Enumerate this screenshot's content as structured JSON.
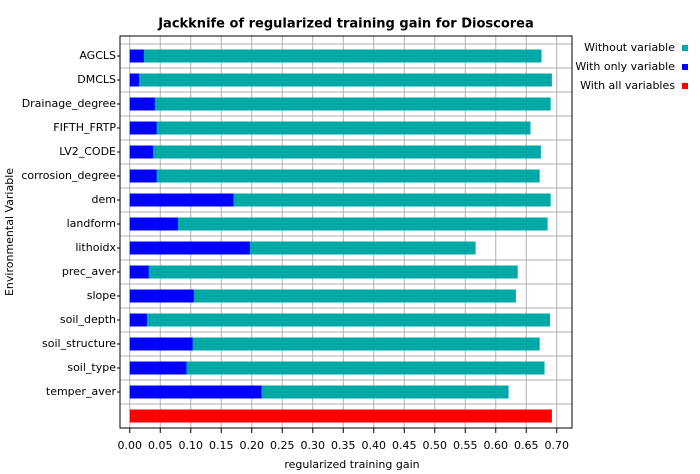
{
  "chart_data": {
    "type": "bar",
    "orientation": "horizontal",
    "overlay": true,
    "title": "Jackknife of regularized training gain for Dioscorea",
    "x_label": "regularized training gain",
    "y_label": "Environmental Variable",
    "categories": [
      "AGCLS",
      "DMCLS",
      "Drainage_degree",
      "FIFTH_FRTP",
      "LV2_CODE",
      "corrosion_degree",
      "dem",
      "landform",
      "lithoidx",
      "prec_aver",
      "slope",
      "soil_depth",
      "soil_structure",
      "soil_type",
      "temper_aver",
      null
    ],
    "series": [
      {
        "name": "Without variable",
        "color": "#00a8a8",
        "values": [
          0.675,
          0.692,
          0.69,
          0.657,
          0.674,
          0.672,
          0.69,
          0.685,
          0.567,
          0.636,
          0.633,
          0.689,
          0.672,
          0.68,
          0.621,
          null
        ]
      },
      {
        "name": "With only variable",
        "color": "#0000ff",
        "values": [
          0.023,
          0.015,
          0.041,
          0.044,
          0.038,
          0.044,
          0.17,
          0.079,
          0.197,
          0.031,
          0.105,
          0.028,
          0.103,
          0.093,
          0.216,
          null
        ]
      },
      {
        "name": "With all variables",
        "color": "#ff0000",
        "values": [
          null,
          null,
          null,
          null,
          null,
          null,
          null,
          null,
          null,
          null,
          null,
          null,
          null,
          null,
          null,
          0.692
        ]
      }
    ],
    "xlim": [
      -0.016,
      0.725
    ],
    "xticks": [
      {
        "value": 0,
        "label": "0.00"
      },
      0.05,
      {
        "value": 0.1,
        "label": "0.10"
      },
      0.15,
      {
        "value": 0.2,
        "label": "0.20"
      },
      0.25,
      {
        "value": 0.3,
        "label": "0.30"
      },
      0.35,
      {
        "value": 0.4,
        "label": "0.40"
      },
      0.45,
      {
        "value": 0.5,
        "label": "0.50"
      },
      0.55,
      {
        "value": 0.6,
        "label": "0.60"
      },
      0.65,
      {
        "value": 0.7,
        "label": "0.70"
      }
    ],
    "grid": true,
    "legend": "top-right"
  }
}
